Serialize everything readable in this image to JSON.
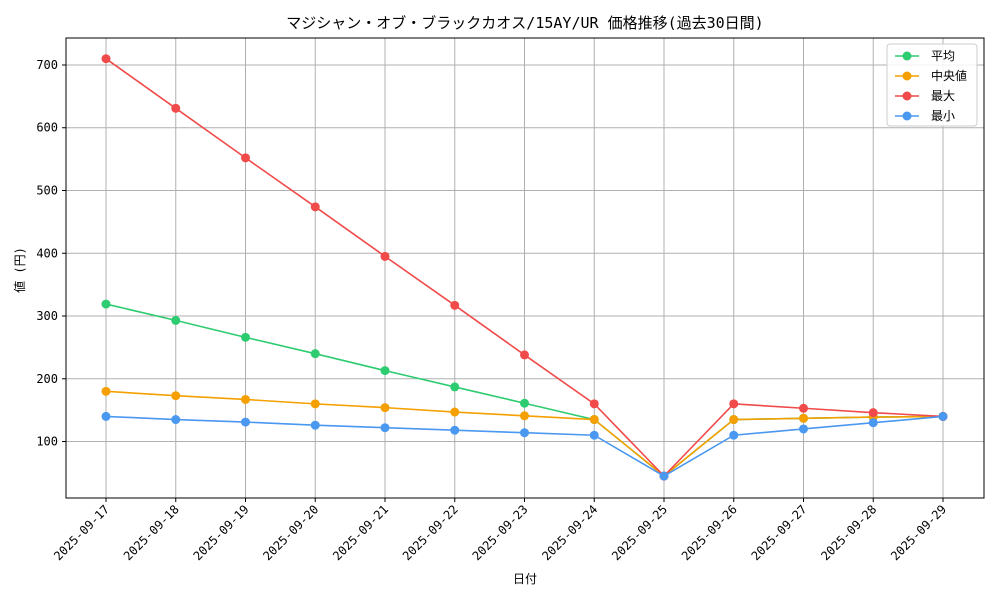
{
  "chart_data": {
    "type": "line",
    "title": "マジシャン・オブ・ブラックカオス/15AY/UR 価格推移(過去30日間)",
    "xlabel": "日付",
    "ylabel": "値 (円)",
    "categories": [
      "2025-09-17",
      "2025-09-18",
      "2025-09-19",
      "2025-09-20",
      "2025-09-21",
      "2025-09-22",
      "2025-09-23",
      "2025-09-24",
      "2025-09-25",
      "2025-09-26",
      "2025-09-27",
      "2025-09-28",
      "2025-09-29"
    ],
    "yticks": [
      100,
      200,
      300,
      400,
      500,
      600,
      700
    ],
    "ylim": [
      10,
      743
    ],
    "grid": true,
    "legend_position": "top-right",
    "series": [
      {
        "name": "平均",
        "color": "#2ecc71",
        "values": [
          319,
          293,
          266,
          240,
          213,
          187,
          161,
          135,
          45,
          135,
          137,
          139,
          140
        ]
      },
      {
        "name": "中央値",
        "color": "#f5a000",
        "values": [
          180,
          173,
          167,
          160,
          154,
          147,
          141,
          135,
          45,
          135,
          137,
          139,
          140
        ]
      },
      {
        "name": "最大",
        "color": "#f04a4a",
        "values": [
          710,
          631,
          552,
          474,
          395,
          317,
          238,
          160,
          45,
          160,
          153,
          146,
          140
        ]
      },
      {
        "name": "最小",
        "color": "#4a98f0",
        "values": [
          140,
          135,
          131,
          126,
          122,
          118,
          114,
          110,
          45,
          110,
          120,
          130,
          140
        ]
      }
    ]
  }
}
